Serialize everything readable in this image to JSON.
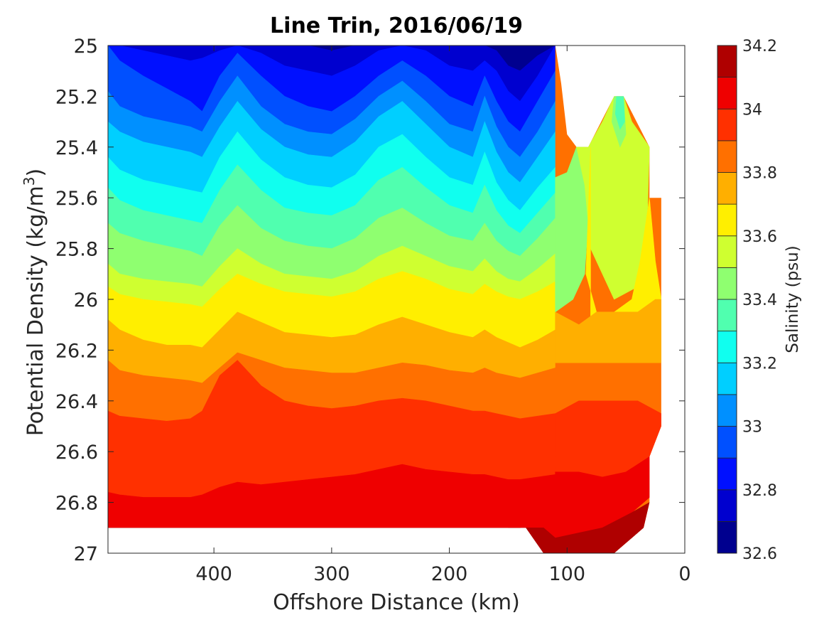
{
  "chart_data": {
    "type": "contour",
    "title": "Line Trin, 2016/06/19",
    "xlabel": "Offshore Distance (km)",
    "ylabel_main": "Potential Density (kg/m",
    "ylabel_sup": "3",
    "ylabel_close": ")",
    "xlim": [
      490,
      0
    ],
    "ylim": [
      25,
      27
    ],
    "x_reversed": true,
    "y_reversed": true,
    "xticks": [
      400,
      300,
      200,
      100,
      0
    ],
    "yticks": [
      25,
      25.2,
      25.4,
      25.6,
      25.8,
      26,
      26.2,
      26.4,
      26.6,
      26.8,
      27
    ],
    "grid": false,
    "colorbar": {
      "label": "Salinity (psu)",
      "range": [
        32.6,
        34.2
      ],
      "ticks": [
        32.6,
        32.8,
        33,
        33.2,
        33.4,
        33.6,
        33.8,
        34,
        34.2
      ],
      "levels": [
        {
          "min": 32.6,
          "max": 32.7,
          "color": "#00008f"
        },
        {
          "min": 32.7,
          "max": 32.8,
          "color": "#0000cf"
        },
        {
          "min": 32.8,
          "max": 32.9,
          "color": "#0010ff"
        },
        {
          "min": 32.9,
          "max": 33.0,
          "color": "#0050ff"
        },
        {
          "min": 33.0,
          "max": 33.1,
          "color": "#0090ff"
        },
        {
          "min": 33.1,
          "max": 33.2,
          "color": "#00cfff"
        },
        {
          "min": 33.2,
          "max": 33.3,
          "color": "#10ffef"
        },
        {
          "min": 33.3,
          "max": 33.4,
          "color": "#50ffaf"
        },
        {
          "min": 33.4,
          "max": 33.5,
          "color": "#8fff70"
        },
        {
          "min": 33.5,
          "max": 33.6,
          "color": "#cfff30"
        },
        {
          "min": 33.6,
          "max": 33.7,
          "color": "#ffef00"
        },
        {
          "min": 33.7,
          "max": 33.8,
          "color": "#ffaf00"
        },
        {
          "min": 33.8,
          "max": 33.9,
          "color": "#ff7000"
        },
        {
          "min": 33.9,
          "max": 34.0,
          "color": "#ff3000"
        },
        {
          "min": 34.0,
          "max": 34.1,
          "color": "#ef0000"
        },
        {
          "min": 34.1,
          "max": 34.2,
          "color": "#af0000"
        }
      ]
    },
    "boundaries": {
      "x": [
        490,
        480,
        460,
        440,
        420,
        410,
        395,
        380,
        360,
        340,
        320,
        300,
        280,
        260,
        240,
        220,
        200,
        180,
        170,
        160,
        150,
        140,
        125,
        110
      ],
      "isolines": [
        {
          "value": 32.7,
          "y": [
            25.0,
            25.0,
            25.0,
            25.0,
            25.0,
            25.0,
            25.0,
            25.0,
            25.0,
            25.0,
            25.0,
            25.02,
            25.0,
            25.0,
            25.0,
            25.0,
            25.0,
            25.0,
            25.0,
            25.02,
            25.08,
            25.1,
            25.04,
            25.0
          ]
        },
        {
          "value": 32.8,
          "y": [
            25.0,
            25.0,
            25.02,
            25.04,
            25.06,
            25.05,
            25.02,
            25.0,
            25.03,
            25.08,
            25.1,
            25.12,
            25.08,
            25.02,
            25.0,
            25.02,
            25.08,
            25.1,
            25.06,
            25.1,
            25.18,
            25.22,
            25.12,
            25.0
          ]
        },
        {
          "value": 32.9,
          "y": [
            25.0,
            25.06,
            25.12,
            25.17,
            25.22,
            25.26,
            25.12,
            25.03,
            25.12,
            25.2,
            25.24,
            25.26,
            25.2,
            25.12,
            25.06,
            25.12,
            25.2,
            25.24,
            25.12,
            25.22,
            25.3,
            25.34,
            25.22,
            25.1
          ]
        },
        {
          "value": 33.0,
          "y": [
            25.18,
            25.24,
            25.28,
            25.3,
            25.32,
            25.34,
            25.22,
            25.12,
            25.24,
            25.31,
            25.34,
            25.35,
            25.29,
            25.2,
            25.14,
            25.22,
            25.31,
            25.34,
            25.2,
            25.32,
            25.4,
            25.44,
            25.34,
            25.22
          ]
        },
        {
          "value": 33.1,
          "y": [
            25.3,
            25.34,
            25.38,
            25.4,
            25.42,
            25.44,
            25.32,
            25.22,
            25.33,
            25.4,
            25.43,
            25.44,
            25.38,
            25.28,
            25.22,
            25.31,
            25.4,
            25.44,
            25.3,
            25.42,
            25.5,
            25.54,
            25.44,
            25.34
          ]
        },
        {
          "value": 33.2,
          "y": [
            25.44,
            25.49,
            25.53,
            25.55,
            25.57,
            25.58,
            25.44,
            25.34,
            25.45,
            25.52,
            25.55,
            25.56,
            25.51,
            25.4,
            25.35,
            25.44,
            25.52,
            25.55,
            25.42,
            25.54,
            25.61,
            25.65,
            25.56,
            25.48
          ]
        },
        {
          "value": 33.3,
          "y": [
            25.56,
            25.61,
            25.65,
            25.67,
            25.69,
            25.7,
            25.57,
            25.47,
            25.57,
            25.64,
            25.66,
            25.67,
            25.63,
            25.53,
            25.48,
            25.56,
            25.63,
            25.66,
            25.55,
            25.65,
            25.71,
            25.74,
            25.66,
            25.58
          ]
        },
        {
          "value": 33.4,
          "y": [
            25.7,
            25.74,
            25.77,
            25.79,
            25.81,
            25.83,
            25.71,
            25.63,
            25.72,
            25.77,
            25.79,
            25.8,
            25.76,
            25.68,
            25.64,
            25.7,
            25.75,
            25.77,
            25.7,
            25.77,
            25.81,
            25.83,
            25.76,
            25.68
          ]
        },
        {
          "value": 33.5,
          "y": [
            25.86,
            25.9,
            25.92,
            25.93,
            25.94,
            25.95,
            25.87,
            25.8,
            25.86,
            25.9,
            25.91,
            25.92,
            25.89,
            25.83,
            25.79,
            25.83,
            25.87,
            25.89,
            25.84,
            25.89,
            25.92,
            25.93,
            25.88,
            25.82
          ]
        },
        {
          "value": 33.6,
          "y": [
            25.95,
            25.98,
            26.0,
            26.01,
            26.02,
            26.03,
            25.96,
            25.9,
            25.94,
            25.97,
            25.98,
            25.99,
            25.97,
            25.92,
            25.89,
            25.92,
            25.96,
            25.98,
            25.94,
            25.97,
            25.99,
            26.0,
            25.97,
            25.93
          ]
        },
        {
          "value": 33.7,
          "y": [
            26.08,
            26.12,
            26.16,
            26.18,
            26.18,
            26.19,
            26.12,
            26.05,
            26.09,
            26.13,
            26.14,
            26.15,
            26.14,
            26.1,
            26.07,
            26.1,
            26.13,
            26.15,
            26.12,
            26.15,
            26.17,
            26.19,
            26.16,
            26.12
          ]
        },
        {
          "value": 33.8,
          "y": [
            26.24,
            26.28,
            26.3,
            26.31,
            26.32,
            26.33,
            26.27,
            26.21,
            26.24,
            26.27,
            26.28,
            26.29,
            26.29,
            26.27,
            26.25,
            26.26,
            26.28,
            26.29,
            26.27,
            26.29,
            26.3,
            26.31,
            26.29,
            26.27
          ]
        },
        {
          "value": 33.9,
          "y": [
            26.44,
            26.46,
            26.47,
            26.48,
            26.47,
            26.44,
            26.3,
            26.24,
            26.34,
            26.4,
            26.42,
            26.43,
            26.42,
            26.4,
            26.39,
            26.4,
            26.42,
            26.44,
            26.44,
            26.45,
            26.46,
            26.47,
            26.46,
            26.45
          ]
        },
        {
          "value": 34.0,
          "y": [
            26.76,
            26.77,
            26.78,
            26.78,
            26.78,
            26.77,
            26.74,
            26.72,
            26.73,
            26.72,
            26.71,
            26.7,
            26.69,
            26.67,
            26.65,
            26.67,
            26.68,
            26.69,
            26.69,
            26.7,
            26.71,
            26.71,
            26.7,
            26.69
          ]
        },
        {
          "value": 34.1,
          "y": [
            26.9,
            26.9,
            26.9,
            26.9,
            26.9,
            26.9,
            26.9,
            26.9,
            26.9,
            26.9,
            26.9,
            26.9,
            26.9,
            26.9,
            26.9,
            26.9,
            26.9,
            26.9,
            26.9,
            26.9,
            26.9,
            26.9,
            26.92,
            26.94
          ]
        }
      ]
    },
    "coastal_polygons": [
      {
        "value": 33.4,
        "points": [
          [
            110,
            25.52
          ],
          [
            100,
            25.5
          ],
          [
            92,
            25.4
          ],
          [
            85,
            25.4
          ],
          [
            80,
            25.55
          ],
          [
            85,
            25.9
          ],
          [
            95,
            26.0
          ],
          [
            110,
            26.05
          ]
        ]
      },
      {
        "value": 33.5,
        "points": [
          [
            92,
            25.4
          ],
          [
            82,
            25.4
          ],
          [
            70,
            25.3
          ],
          [
            60,
            25.2
          ],
          [
            52,
            25.2
          ],
          [
            45,
            25.3
          ],
          [
            30,
            25.4
          ],
          [
            32,
            25.7
          ],
          [
            40,
            25.95
          ],
          [
            60,
            26.0
          ],
          [
            80,
            25.8
          ],
          [
            85,
            25.55
          ]
        ]
      },
      {
        "value": 33.4,
        "points": [
          [
            60,
            25.2
          ],
          [
            52,
            25.2
          ],
          [
            50,
            25.35
          ],
          [
            55,
            25.4
          ],
          [
            62,
            25.3
          ]
        ]
      },
      {
        "value": 33.3,
        "points": [
          [
            58,
            25.2
          ],
          [
            52,
            25.2
          ],
          [
            51,
            25.3
          ],
          [
            55,
            25.33
          ],
          [
            59,
            25.27
          ]
        ]
      },
      {
        "value": 33.6,
        "points": [
          [
            80,
            25.4
          ],
          [
            84,
            25.9
          ],
          [
            75,
            26.05
          ],
          [
            60,
            26.05
          ],
          [
            45,
            26.0
          ],
          [
            38,
            25.85
          ],
          [
            30,
            25.6
          ],
          [
            25,
            25.85
          ],
          [
            20,
            26.0
          ],
          [
            30,
            26.05
          ],
          [
            42,
            26.15
          ],
          [
            60,
            26.2
          ],
          [
            80,
            26.15
          ]
        ]
      },
      {
        "value": 33.7,
        "points": [
          [
            110,
            26.05
          ],
          [
            90,
            26.1
          ],
          [
            75,
            26.05
          ],
          [
            60,
            26.05
          ],
          [
            40,
            26.05
          ],
          [
            25,
            26.0
          ],
          [
            20,
            26.0
          ],
          [
            20,
            26.25
          ],
          [
            40,
            26.25
          ],
          [
            60,
            26.25
          ],
          [
            85,
            26.25
          ],
          [
            110,
            26.25
          ]
        ]
      },
      {
        "value": 33.9,
        "points": [
          [
            110,
            26.45
          ],
          [
            90,
            26.4
          ],
          [
            60,
            26.4
          ],
          [
            40,
            26.4
          ],
          [
            20,
            26.45
          ],
          [
            20,
            26.5
          ],
          [
            30,
            26.62
          ],
          [
            50,
            26.68
          ],
          [
            70,
            26.7
          ],
          [
            90,
            26.68
          ],
          [
            110,
            26.68
          ]
        ]
      },
      {
        "value": 34.0,
        "points": [
          [
            110,
            26.68
          ],
          [
            90,
            26.68
          ],
          [
            70,
            26.7
          ],
          [
            50,
            26.68
          ],
          [
            30,
            26.62
          ],
          [
            30,
            26.78
          ],
          [
            45,
            26.84
          ],
          [
            70,
            26.9
          ],
          [
            90,
            26.92
          ],
          [
            110,
            26.94
          ]
        ]
      },
      {
        "value": 34.1,
        "points": [
          [
            150,
            26.9
          ],
          [
            120,
            26.9
          ],
          [
            110,
            26.94
          ],
          [
            90,
            26.92
          ],
          [
            70,
            26.9
          ],
          [
            45,
            26.84
          ],
          [
            30,
            26.8
          ],
          [
            35,
            26.9
          ],
          [
            60,
            27.0
          ],
          [
            120,
            27.0
          ],
          [
            135,
            26.9
          ]
        ]
      }
    ],
    "data_extent": {
      "top_edge": [
        [
          490,
          25.0
        ],
        [
          110,
          25.0
        ],
        [
          105,
          25.15
        ],
        [
          100,
          25.35
        ],
        [
          92,
          25.4
        ],
        [
          82,
          25.4
        ],
        [
          60,
          25.2
        ],
        [
          52,
          25.2
        ],
        [
          30,
          25.4
        ],
        [
          30,
          25.6
        ],
        [
          20,
          25.6
        ],
        [
          20,
          26.5
        ],
        [
          30,
          26.62
        ],
        [
          30,
          26.8
        ],
        [
          35,
          26.9
        ],
        [
          60,
          27.0
        ],
        [
          120,
          27.0
        ],
        [
          135,
          26.9
        ],
        [
          490,
          26.9
        ]
      ]
    }
  }
}
